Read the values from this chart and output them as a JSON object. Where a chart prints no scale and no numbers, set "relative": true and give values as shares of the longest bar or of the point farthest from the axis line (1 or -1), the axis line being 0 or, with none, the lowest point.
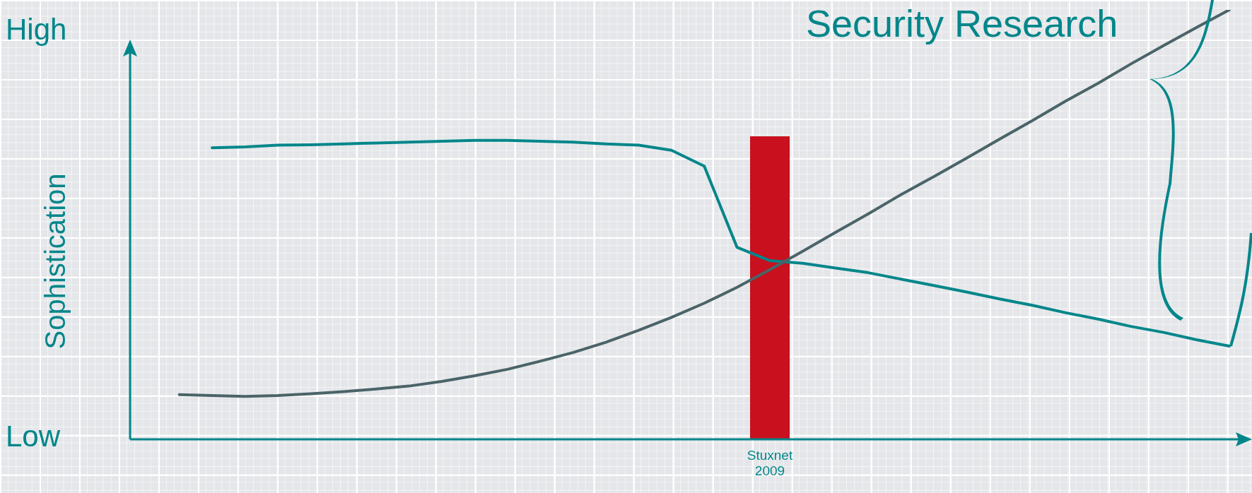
{
  "chart_data": [
    {
      "type": "line",
      "title": "Security Research",
      "ylabel": "Sophistication",
      "relative": true,
      "legend": false,
      "grid": false,
      "marker": "none",
      "line_style": "solid",
      "annotations": [
        "High",
        "Low"
      ],
      "categories": [
        null,
        null,
        null,
        null,
        null,
        null,
        null,
        null,
        null,
        null,
        null,
        null,
        null,
        null,
        null,
        null,
        null,
        null,
        null,
        null,
        null,
        null,
        null,
        null,
        null,
        null,
        null,
        null,
        null,
        null,
        null,
        null,
        null,
        null
      ],
      "series": [
        {
          "color": "#4a6468",
          "values": [
            null,
            0.104,
            0.102,
            0.1,
            0.102,
            0.106,
            0.111,
            0.117,
            0.124,
            0.135,
            0.148,
            0.163,
            0.182,
            0.202,
            0.226,
            0.254,
            0.284,
            0.317,
            0.354,
            0.395,
            0.438,
            0.482,
            0.525,
            0.57,
            0.612,
            0.655,
            0.699,
            0.742,
            0.787,
            0.829,
            0.874,
            0.917,
            0.959,
            1.0
          ]
        },
        {
          "color": "#00868a",
          "values": [
            null,
            null,
            0.679,
            0.681,
            0.685,
            0.686,
            0.688,
            0.69,
            0.692,
            0.694,
            0.696,
            0.696,
            0.694,
            0.692,
            0.688,
            0.685,
            0.673,
            0.636,
            0.447,
            0.416,
            0.41,
            0.399,
            0.388,
            0.373,
            0.358,
            0.343,
            0.327,
            0.312,
            0.295,
            0.28,
            0.263,
            0.249,
            0.232,
            0.217
          ]
        }
      ]
    },
    {
      "type": "bar",
      "relative": true,
      "categories": [
        "Stuxnet 2009"
      ],
      "values": [
        1
      ],
      "color": "#c8101e"
    }
  ]
}
